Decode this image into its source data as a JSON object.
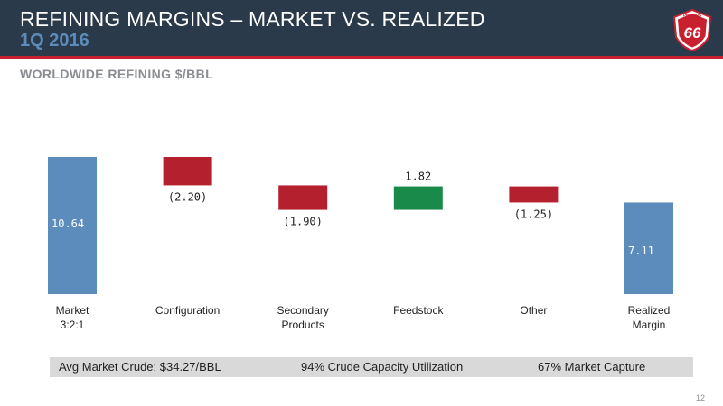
{
  "header": {
    "title": "REFINING MARGINS – MARKET VS. REALIZED",
    "period": "1Q 2016",
    "logo_text": "PHILLIPS 66"
  },
  "section_title": "WORLDWIDE REFINING $/BBL",
  "chart_data": {
    "type": "bar",
    "subtype": "waterfall",
    "categories": [
      "Market\n3:2:1",
      "Configuration",
      "Secondary\nProducts",
      "Feedstock",
      "Other",
      "Realized\nMargin"
    ],
    "values": [
      10.64,
      -2.2,
      -1.9,
      1.82,
      -1.25,
      7.11
    ],
    "data_labels": [
      "10.64",
      "(2.20)",
      "(1.90)",
      "1.82",
      "(1.25)",
      "7.11"
    ],
    "bar_kind": [
      "total",
      "delta",
      "delta",
      "delta",
      "delta",
      "total"
    ],
    "colors": {
      "total": "#5b8cbc",
      "decrease": "#b5202e",
      "increase": "#1a8a4a",
      "total_label": "#ffffff",
      "delta_label": "#222222"
    },
    "ylim": [
      0,
      10.64
    ],
    "grid": false,
    "legend": "none"
  },
  "info_bar": {
    "crude": "Avg Market Crude: $34.27/BBL",
    "utilization": "94% Crude Capacity Utilization",
    "capture": "67% Market Capture"
  },
  "page_number": "12",
  "colors": {
    "header_bg": "#2b3a4a",
    "accent_red": "#c8202f",
    "period_blue": "#5b8cbc",
    "muted_gray": "#8a8d91",
    "info_bar_bg": "#d9d9d9"
  }
}
